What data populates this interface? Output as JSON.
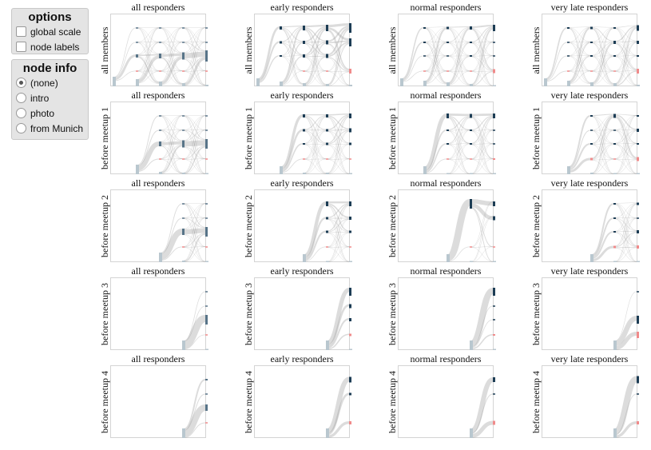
{
  "options": {
    "title": "options",
    "items": [
      {
        "label": "global scale",
        "checked": false
      },
      {
        "label": "node labels",
        "checked": false
      }
    ]
  },
  "node_info": {
    "title": "node info",
    "items": [
      {
        "label": "(none)",
        "selected": true
      },
      {
        "label": "intro",
        "selected": false
      },
      {
        "label": "photo",
        "selected": false
      },
      {
        "label": "from Munich",
        "selected": false
      }
    ]
  },
  "colors": {
    "link": "#9a9a9a",
    "node_all": "#587488",
    "node_group": "#1d3d55",
    "node_red": "#f08b8b",
    "node_pending": "#b9c7cf"
  },
  "columns": [
    "all responders",
    "early responders",
    "normal responders",
    "very late responders"
  ],
  "rows": [
    {
      "label": "all members",
      "start": 0,
      "nodes": [
        [
          [
            [
              0,
              0,
              0,
              0,
              12
            ],
            [
              1,
              1,
              4,
              1,
              9
            ],
            [
              1,
              1,
              6,
              1,
              6
            ],
            [
              1,
              1,
              9,
              1,
              4
            ],
            [
              1,
              1,
              14,
              1,
              2
            ]
          ]
        ],
        [
          [
            [
              0,
              0,
              0,
              0,
              10
            ],
            [
              4,
              3,
              2,
              0,
              6
            ],
            [
              6,
              4,
              4,
              1,
              4
            ],
            [
              8,
              5,
              5,
              1,
              3
            ],
            [
              12,
              10,
              0,
              6,
              2
            ]
          ]
        ],
        [
          [
            [
              0,
              0,
              0,
              0,
              10
            ],
            [
              2,
              2,
              1,
              1,
              7
            ],
            [
              3,
              2,
              1,
              1,
              5
            ],
            [
              4,
              2,
              2,
              1,
              3
            ],
            [
              8,
              1,
              1,
              5,
              1
            ]
          ]
        ],
        [
          [
            [
              0,
              0,
              0,
              0,
              10
            ],
            [
              2,
              1,
              1,
              1,
              7
            ],
            [
              3,
              2,
              2,
              1,
              5
            ],
            [
              2,
              4,
              2,
              1,
              4
            ],
            [
              7,
              4,
              2,
              6,
              2
            ]
          ]
        ]
      ]
    },
    {
      "label": "before meetup 1",
      "start": 1,
      "nodes": [
        [
          [
            null,
            [
              0,
              0,
              0,
              0,
              12
            ],
            [
              1,
              1,
              6,
              1,
              3
            ],
            [
              1,
              1,
              9,
              1,
              2
            ],
            [
              1,
              1,
              12,
              1,
              1
            ]
          ]
        ],
        [
          [
            null,
            [
              0,
              0,
              0,
              0,
              10
            ],
            [
              4,
              3,
              2,
              1,
              2
            ],
            [
              4,
              3,
              3,
              1,
              2
            ],
            [
              6,
              5,
              3,
              1,
              1
            ]
          ]
        ],
        [
          [
            null,
            [
              0,
              0,
              0,
              0,
              10
            ],
            [
              6,
              2,
              2,
              1,
              1
            ],
            [
              5,
              2,
              2,
              1,
              1
            ],
            [
              6,
              1,
              1,
              2,
              1
            ]
          ]
        ],
        [
          [
            null,
            [
              0,
              0,
              0,
              0,
              10
            ],
            [
              2,
              1,
              2,
              3,
              2
            ],
            [
              5,
              1,
              2,
              1,
              1
            ],
            [
              2,
              4,
              2,
              5,
              1
            ]
          ]
        ]
      ]
    },
    {
      "label": "before meetup 2",
      "start": 2,
      "nodes": [
        [
          [
            null,
            null,
            [
              0,
              0,
              0,
              0,
              12
            ],
            [
              1,
              1,
              8,
              1,
              2
            ],
            [
              1,
              1,
              12,
              1,
              1
            ]
          ]
        ],
        [
          [
            null,
            null,
            [
              0,
              0,
              0,
              0,
              10
            ],
            [
              6,
              3,
              3,
              1,
              1
            ],
            [
              6,
              4,
              3,
              1,
              1
            ]
          ]
        ],
        [
          [
            null,
            null,
            [
              0,
              0,
              0,
              0,
              10
            ],
            [
              12,
              0,
              0,
              1,
              1
            ],
            [
              6,
              5,
              0,
              1,
              1
            ]
          ]
        ],
        [
          [
            null,
            null,
            [
              0,
              0,
              0,
              0,
              10
            ],
            [
              2,
              2,
              2,
              3,
              1
            ],
            [
              3,
              1,
              4,
              4,
              1
            ]
          ]
        ]
      ]
    },
    {
      "label": "before meetup 3",
      "start": 3,
      "nodes": [
        [
          [
            null,
            null,
            null,
            [
              0,
              0,
              0,
              0,
              12
            ],
            [
              1,
              1,
              12,
              1,
              1
            ]
          ]
        ],
        [
          [
            null,
            null,
            null,
            [
              0,
              0,
              0,
              0,
              12
            ],
            [
              10,
              5,
              4,
              3,
              1
            ]
          ]
        ],
        [
          [
            null,
            null,
            null,
            [
              0,
              0,
              0,
              0,
              12
            ],
            [
              10,
              1,
              1,
              2,
              1
            ]
          ]
        ],
        [
          [
            null,
            null,
            null,
            [
              0,
              0,
              0,
              0,
              12
            ],
            [
              1,
              0,
              10,
              8,
              0
            ]
          ]
        ]
      ]
    },
    {
      "label": "before meetup 4",
      "start": 3,
      "nodes": [
        [
          [
            null,
            null,
            null,
            [
              0,
              0,
              0,
              0,
              12
            ],
            [
              2,
              1,
              8,
              1,
              0
            ]
          ]
        ],
        [
          [
            null,
            null,
            null,
            [
              0,
              0,
              0,
              0,
              12
            ],
            [
              7,
              3,
              0,
              4,
              0
            ]
          ]
        ],
        [
          [
            null,
            null,
            null,
            [
              0,
              0,
              0,
              0,
              12
            ],
            [
              6,
              1,
              0,
              5,
              0
            ]
          ]
        ],
        [
          [
            null,
            null,
            null,
            [
              0,
              0,
              0,
              0,
              12
            ],
            [
              9,
              1,
              0,
              4,
              0
            ]
          ]
        ]
      ]
    }
  ]
}
